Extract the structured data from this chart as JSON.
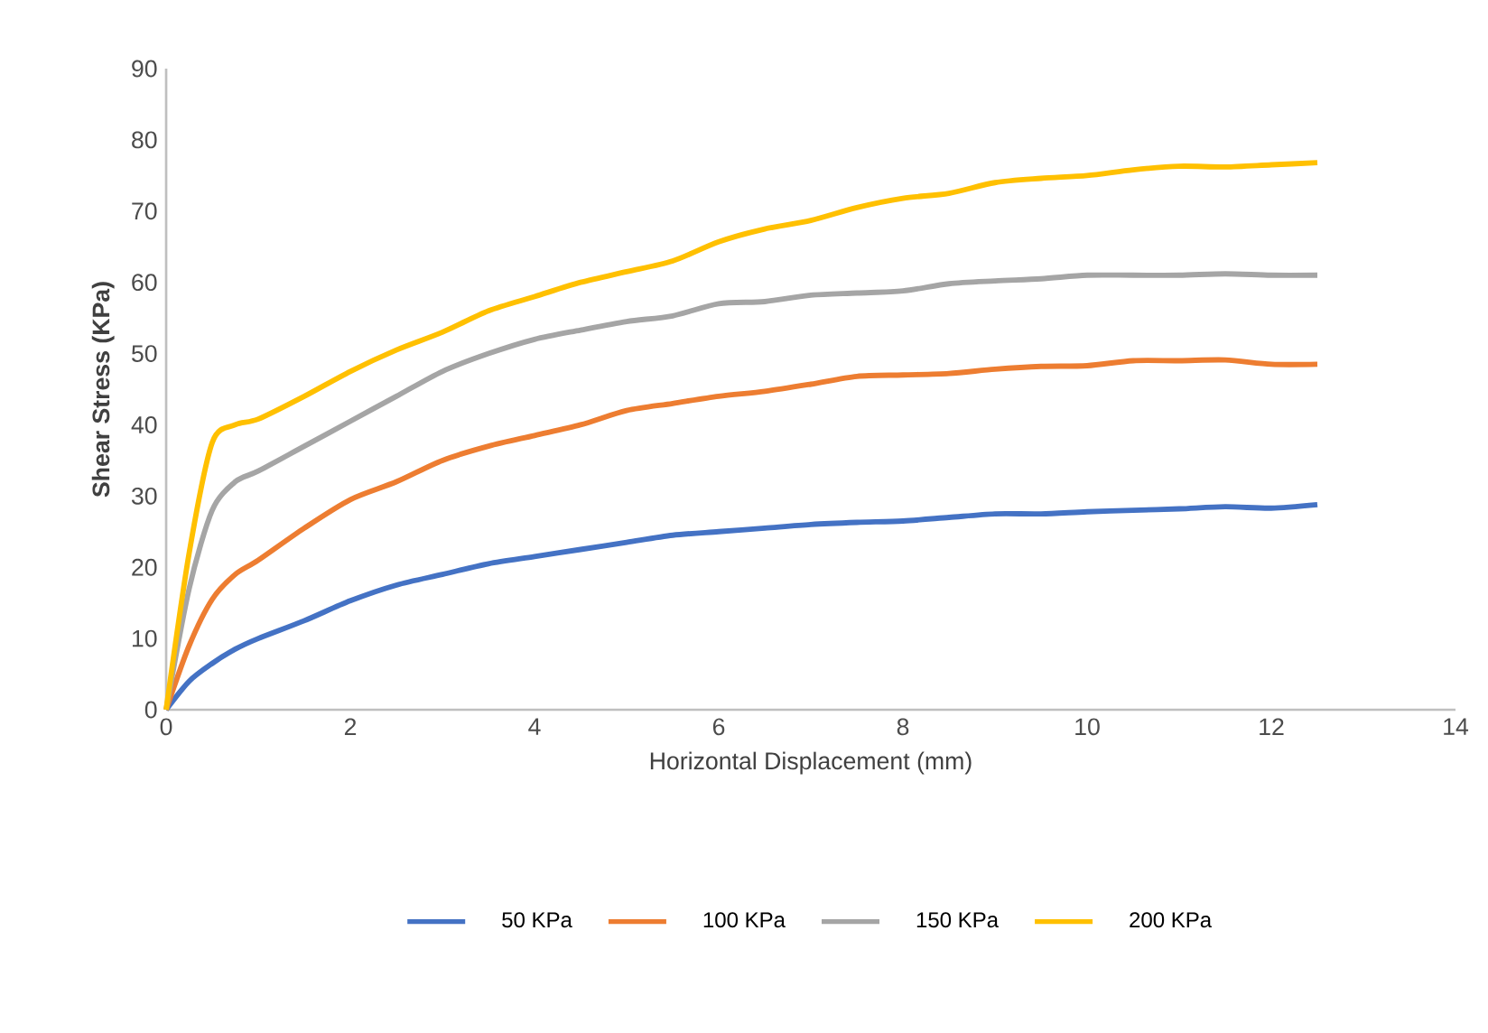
{
  "chart_data": {
    "type": "line",
    "xlabel": "Horizontal Displacement (mm)",
    "ylabel": "Shear Stress (KPa)",
    "x": [
      0,
      0.25,
      0.5,
      0.75,
      1,
      1.5,
      2,
      2.5,
      3,
      3.5,
      4,
      4.5,
      5,
      5.5,
      6,
      6.5,
      7,
      7.5,
      8,
      8.5,
      9,
      9.5,
      10,
      10.5,
      11,
      11.5,
      12,
      12.5
    ],
    "series": [
      {
        "name": "50 KPa",
        "color": "#4472c4",
        "values": [
          0,
          4,
          6.5,
          8.5,
          10,
          12.5,
          15.3,
          17.5,
          19,
          20.5,
          21.5,
          22.5,
          23.5,
          24.5,
          25,
          25.5,
          26,
          26.3,
          26.5,
          27,
          27.5,
          27.5,
          27.8,
          28,
          28.2,
          28.5,
          28.3,
          28.8
        ]
      },
      {
        "name": "100 KPa",
        "color": "#ed7d31",
        "values": [
          0,
          9,
          15.5,
          19,
          21,
          25.5,
          29.5,
          32,
          35,
          37,
          38.5,
          40,
          42,
          43,
          44,
          44.7,
          45.7,
          46.8,
          47,
          47.2,
          47.8,
          48.2,
          48.3,
          49,
          49,
          49.1,
          48.5,
          48.5
        ]
      },
      {
        "name": "150 KPa",
        "color": "#a5a5a5",
        "values": [
          0,
          17,
          28,
          32,
          33.5,
          37,
          40.5,
          44,
          47.5,
          50,
          52,
          53.3,
          54.5,
          55.3,
          57,
          57.3,
          58.2,
          58.5,
          58.8,
          59.8,
          60.2,
          60.5,
          61,
          61,
          61,
          61.2,
          61,
          61
        ]
      },
      {
        "name": "200 KPa",
        "color": "#ffc000",
        "values": [
          0,
          22,
          37.5,
          40,
          40.8,
          44,
          47.5,
          50.5,
          53,
          56,
          58,
          60,
          61.5,
          63,
          65.7,
          67.5,
          68.7,
          70.5,
          71.8,
          72.5,
          74,
          74.6,
          75,
          75.8,
          76.3,
          76.2,
          76.5,
          76.8
        ]
      }
    ],
    "xlim": [
      0,
      14
    ],
    "ylim": [
      0,
      90
    ],
    "xticks": [
      0,
      2,
      4,
      6,
      8,
      10,
      12,
      14
    ],
    "yticks": [
      0,
      10,
      20,
      30,
      40,
      50,
      60,
      70,
      80,
      90
    ],
    "legend": "bottom",
    "marker": "none",
    "line_style": "solid"
  }
}
